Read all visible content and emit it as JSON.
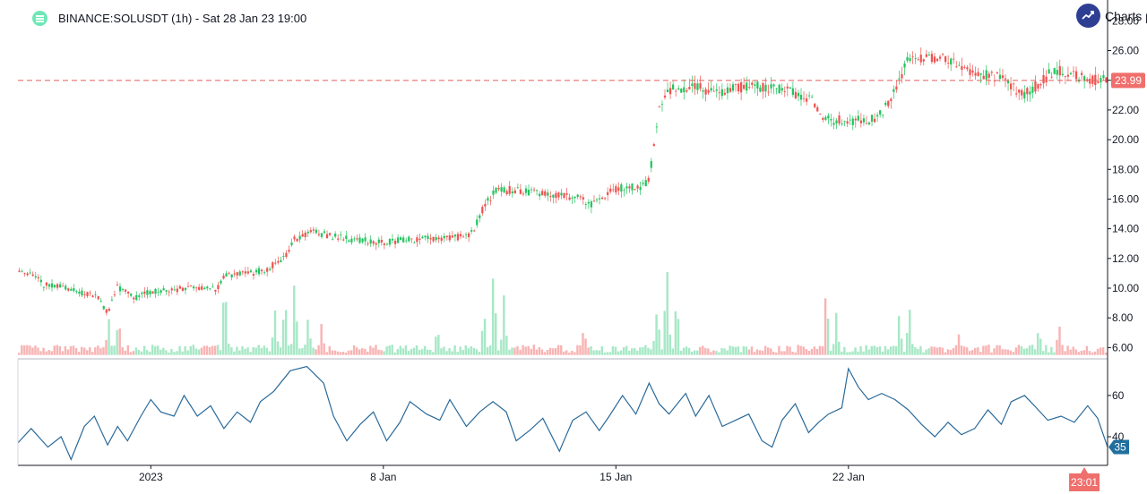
{
  "header": {
    "symbol_line": "BINANCE:SOLUSDT (1h) - Sat 28 Jan 23 19:00",
    "brand_text": "Charts p",
    "logo_icon": "list-icon",
    "brand_icon": "trend-up-icon"
  },
  "colors": {
    "up": "#26a69a",
    "up_line": "#22c55e",
    "down": "#ef5350",
    "volume_up": "#a7e8c6",
    "volume_down": "#f8b4b4",
    "rsi_line": "#2a6a9a",
    "price_line": "#e35d5d",
    "price_badge": "#ef6f6c",
    "rsi_badge": "#1f6f9f",
    "axis_text": "#131722"
  },
  "chart_data": {
    "type": "candlestick",
    "symbol": "BINANCE:SOLUSDT",
    "interval": "1h",
    "price_axis": {
      "ticks": [
        "6.00",
        "8.00",
        "10.00",
        "12.00",
        "14.00",
        "16.00",
        "18.00",
        "20.00",
        "22.00",
        "24.00",
        "26.00",
        "28.00"
      ],
      "range": [
        5.3,
        28.2
      ]
    },
    "current_price": {
      "label": "23.99",
      "value": 23.99
    },
    "time_axis": {
      "labels": [
        "2023",
        "8 Jan",
        "15 Jan",
        "22 Jan"
      ],
      "label_days": [
        4,
        11,
        18,
        25
      ],
      "range_days": [
        0,
        32.8
      ],
      "cursor_label": "23:01",
      "cursor_day": 32.1
    },
    "price_path": [
      [
        0,
        11.0
      ],
      [
        0.6,
        10.8
      ],
      [
        0.8,
        10.2
      ],
      [
        1.3,
        10.1
      ],
      [
        2.0,
        9.6
      ],
      [
        2.4,
        9.5
      ],
      [
        2.7,
        8.3
      ],
      [
        3.0,
        10.1
      ],
      [
        3.5,
        9.3
      ],
      [
        3.9,
        9.7
      ],
      [
        4.5,
        9.9
      ],
      [
        5.5,
        10.0
      ],
      [
        6.0,
        9.9
      ],
      [
        6.2,
        10.9
      ],
      [
        7.0,
        11.0
      ],
      [
        7.5,
        11.3
      ],
      [
        8.0,
        12.0
      ],
      [
        8.3,
        13.3
      ],
      [
        8.9,
        13.8
      ],
      [
        9.4,
        13.5
      ],
      [
        10.0,
        13.3
      ],
      [
        11.0,
        13.1
      ],
      [
        12.0,
        13.3
      ],
      [
        12.9,
        13.3
      ],
      [
        13.4,
        13.5
      ],
      [
        13.7,
        13.8
      ],
      [
        14.0,
        15.4
      ],
      [
        14.4,
        16.6
      ],
      [
        15.0,
        16.6
      ],
      [
        16.0,
        16.4
      ],
      [
        17.0,
        16.0
      ],
      [
        17.2,
        15.6
      ],
      [
        17.8,
        16.5
      ],
      [
        18.3,
        16.8
      ],
      [
        18.7,
        16.8
      ],
      [
        19.0,
        17.2
      ],
      [
        19.3,
        22.3
      ],
      [
        19.7,
        23.5
      ],
      [
        20.5,
        23.5
      ],
      [
        21.0,
        23.2
      ],
      [
        22.0,
        23.6
      ],
      [
        23.0,
        23.4
      ],
      [
        23.9,
        22.7
      ],
      [
        24.3,
        21.3
      ],
      [
        25.0,
        21.3
      ],
      [
        25.6,
        21.3
      ],
      [
        26.0,
        21.7
      ],
      [
        26.4,
        23.4
      ],
      [
        26.8,
        25.4
      ],
      [
        27.5,
        25.6
      ],
      [
        28.0,
        25.4
      ],
      [
        28.8,
        24.5
      ],
      [
        29.7,
        24.2
      ],
      [
        30.2,
        23.0
      ],
      [
        30.7,
        23.7
      ],
      [
        31.2,
        24.7
      ],
      [
        31.8,
        24.3
      ],
      [
        32.4,
        24.0
      ],
      [
        32.8,
        23.99
      ]
    ],
    "volume": {
      "baseline_price": 5.5,
      "spikes": [
        [
          2.7,
          3.4
        ],
        [
          3.0,
          2.6
        ],
        [
          6.2,
          6.8
        ],
        [
          7.7,
          4.0
        ],
        [
          8.0,
          3.8
        ],
        [
          8.3,
          5.4
        ],
        [
          8.7,
          3.1
        ],
        [
          9.1,
          2.4
        ],
        [
          12.6,
          2.2
        ],
        [
          14.0,
          3.6
        ],
        [
          14.3,
          6.4
        ],
        [
          14.6,
          4.1
        ],
        [
          17.0,
          2.1
        ],
        [
          19.2,
          4.6
        ],
        [
          19.5,
          6.5
        ],
        [
          19.8,
          4.4
        ],
        [
          24.3,
          5.3
        ],
        [
          24.6,
          3.3
        ],
        [
          26.5,
          3.7
        ],
        [
          26.8,
          4.5
        ],
        [
          28.3,
          2.3
        ],
        [
          30.7,
          2.7
        ],
        [
          31.3,
          2.4
        ]
      ]
    },
    "rsi": {
      "ticks": [
        "40",
        "60"
      ],
      "range": [
        27,
        76
      ],
      "value_label": "35",
      "value": 35,
      "path": [
        [
          0,
          37
        ],
        [
          0.4,
          44
        ],
        [
          0.9,
          35
        ],
        [
          1.3,
          40
        ],
        [
          1.6,
          29
        ],
        [
          2.0,
          45
        ],
        [
          2.3,
          50
        ],
        [
          2.7,
          36
        ],
        [
          3.0,
          45
        ],
        [
          3.3,
          38
        ],
        [
          3.7,
          50
        ],
        [
          4.0,
          58
        ],
        [
          4.3,
          52
        ],
        [
          4.7,
          50
        ],
        [
          5.0,
          60
        ],
        [
          5.4,
          50
        ],
        [
          5.8,
          55
        ],
        [
          6.2,
          44
        ],
        [
          6.6,
          52
        ],
        [
          7.0,
          47
        ],
        [
          7.3,
          57
        ],
        [
          7.7,
          62
        ],
        [
          8.2,
          72
        ],
        [
          8.7,
          74
        ],
        [
          9.2,
          66
        ],
        [
          9.5,
          50
        ],
        [
          9.9,
          38
        ],
        [
          10.3,
          46
        ],
        [
          10.7,
          52
        ],
        [
          11.1,
          38
        ],
        [
          11.5,
          47
        ],
        [
          11.8,
          57
        ],
        [
          12.3,
          51
        ],
        [
          12.7,
          48
        ],
        [
          13.0,
          58
        ],
        [
          13.5,
          45
        ],
        [
          13.9,
          52
        ],
        [
          14.3,
          57
        ],
        [
          14.7,
          52
        ],
        [
          15.0,
          38
        ],
        [
          15.4,
          43
        ],
        [
          15.8,
          49
        ],
        [
          16.3,
          33
        ],
        [
          16.7,
          48
        ],
        [
          17.1,
          52
        ],
        [
          17.5,
          43
        ],
        [
          17.8,
          50
        ],
        [
          18.2,
          60
        ],
        [
          18.6,
          51
        ],
        [
          19.0,
          66
        ],
        [
          19.3,
          56
        ],
        [
          19.6,
          51
        ],
        [
          20.1,
          61
        ],
        [
          20.4,
          50
        ],
        [
          20.8,
          60
        ],
        [
          21.2,
          45
        ],
        [
          21.6,
          48
        ],
        [
          22.0,
          51
        ],
        [
          22.4,
          38
        ],
        [
          22.7,
          35
        ],
        [
          23.0,
          48
        ],
        [
          23.4,
          56
        ],
        [
          23.8,
          42
        ],
        [
          24.1,
          47
        ],
        [
          24.4,
          51
        ],
        [
          24.8,
          54
        ],
        [
          25.0,
          73
        ],
        [
          25.3,
          64
        ],
        [
          25.6,
          58
        ],
        [
          26.0,
          61
        ],
        [
          26.4,
          58
        ],
        [
          26.8,
          53
        ],
        [
          27.2,
          46
        ],
        [
          27.6,
          40
        ],
        [
          28.0,
          47
        ],
        [
          28.4,
          41
        ],
        [
          28.8,
          44
        ],
        [
          29.2,
          53
        ],
        [
          29.6,
          46
        ],
        [
          29.9,
          57
        ],
        [
          30.3,
          60
        ],
        [
          30.6,
          55
        ],
        [
          31.0,
          48
        ],
        [
          31.4,
          50
        ],
        [
          31.8,
          47
        ],
        [
          32.2,
          55
        ],
        [
          32.5,
          49
        ],
        [
          32.8,
          35
        ]
      ]
    },
    "grid": false,
    "legend": "none"
  }
}
